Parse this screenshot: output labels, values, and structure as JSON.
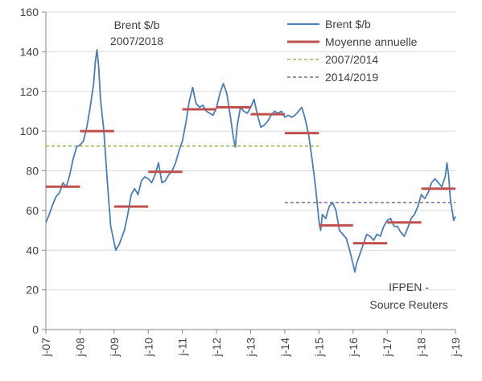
{
  "chart_data": {
    "type": "line",
    "title": "Brent $/b\n2007/2018",
    "title_lines": [
      "Brent $/b",
      "2007/2018"
    ],
    "source_lines": [
      "IFPEN -",
      "Source Reuters"
    ],
    "xlabel": "",
    "ylabel": "",
    "ylim": [
      0,
      160
    ],
    "yticks": [
      0,
      20,
      40,
      60,
      80,
      100,
      120,
      140,
      160
    ],
    "xlim": [
      2007,
      2019
    ],
    "xticks": [
      {
        "x": 2007,
        "label": "j-07"
      },
      {
        "x": 2008,
        "label": "j-08"
      },
      {
        "x": 2009,
        "label": "j-09"
      },
      {
        "x": 2010,
        "label": "j-10"
      },
      {
        "x": 2011,
        "label": "j-11"
      },
      {
        "x": 2012,
        "label": "j-12"
      },
      {
        "x": 2013,
        "label": "j-13"
      },
      {
        "x": 2014,
        "label": "j-14"
      },
      {
        "x": 2015,
        "label": "j-15"
      },
      {
        "x": 2016,
        "label": "j-16"
      },
      {
        "x": 2017,
        "label": "j-17"
      },
      {
        "x": 2018,
        "label": "j-18"
      },
      {
        "x": 2019,
        "label": "j-19"
      }
    ],
    "grid": "horizontal",
    "legend_position": "top-right",
    "series": [
      {
        "name": "Brent $/b",
        "kind": "line",
        "color": "#4a7ebb",
        "points": [
          [
            2007.0,
            54
          ],
          [
            2007.1,
            58
          ],
          [
            2007.2,
            63
          ],
          [
            2007.3,
            67
          ],
          [
            2007.4,
            69
          ],
          [
            2007.5,
            74
          ],
          [
            2007.6,
            72
          ],
          [
            2007.7,
            78
          ],
          [
            2007.8,
            86
          ],
          [
            2007.9,
            92
          ],
          [
            2008.0,
            93
          ],
          [
            2008.1,
            95
          ],
          [
            2008.2,
            102
          ],
          [
            2008.3,
            112
          ],
          [
            2008.4,
            124
          ],
          [
            2008.45,
            135
          ],
          [
            2008.5,
            141
          ],
          [
            2008.55,
            132
          ],
          [
            2008.6,
            116
          ],
          [
            2008.7,
            100
          ],
          [
            2008.8,
            75
          ],
          [
            2008.9,
            52
          ],
          [
            2009.0,
            44
          ],
          [
            2009.05,
            40
          ],
          [
            2009.15,
            43
          ],
          [
            2009.3,
            50
          ],
          [
            2009.4,
            58
          ],
          [
            2009.5,
            68
          ],
          [
            2009.6,
            71
          ],
          [
            2009.7,
            68
          ],
          [
            2009.8,
            75
          ],
          [
            2009.9,
            77
          ],
          [
            2010.0,
            76
          ],
          [
            2010.1,
            74
          ],
          [
            2010.2,
            78
          ],
          [
            2010.3,
            84
          ],
          [
            2010.4,
            74
          ],
          [
            2010.5,
            75
          ],
          [
            2010.6,
            78
          ],
          [
            2010.7,
            80
          ],
          [
            2010.8,
            84
          ],
          [
            2010.9,
            90
          ],
          [
            2011.0,
            95
          ],
          [
            2011.1,
            104
          ],
          [
            2011.2,
            115
          ],
          [
            2011.3,
            122
          ],
          [
            2011.4,
            114
          ],
          [
            2011.5,
            112
          ],
          [
            2011.6,
            113
          ],
          [
            2011.7,
            110
          ],
          [
            2011.8,
            109
          ],
          [
            2011.9,
            108
          ],
          [
            2012.0,
            112
          ],
          [
            2012.1,
            119
          ],
          [
            2012.2,
            124
          ],
          [
            2012.3,
            119
          ],
          [
            2012.4,
            108
          ],
          [
            2012.5,
            96
          ],
          [
            2012.55,
            92
          ],
          [
            2012.6,
            102
          ],
          [
            2012.7,
            112
          ],
          [
            2012.8,
            110
          ],
          [
            2012.9,
            109
          ],
          [
            2013.0,
            112
          ],
          [
            2013.1,
            116
          ],
          [
            2013.2,
            108
          ],
          [
            2013.3,
            102
          ],
          [
            2013.4,
            103
          ],
          [
            2013.5,
            105
          ],
          [
            2013.6,
            108
          ],
          [
            2013.7,
            110
          ],
          [
            2013.8,
            109
          ],
          [
            2013.9,
            110
          ],
          [
            2014.0,
            107
          ],
          [
            2014.1,
            108
          ],
          [
            2014.2,
            107
          ],
          [
            2014.3,
            108
          ],
          [
            2014.4,
            110
          ],
          [
            2014.5,
            112
          ],
          [
            2014.6,
            106
          ],
          [
            2014.7,
            98
          ],
          [
            2014.8,
            86
          ],
          [
            2014.9,
            72
          ],
          [
            2015.0,
            55
          ],
          [
            2015.05,
            50
          ],
          [
            2015.1,
            58
          ],
          [
            2015.2,
            56
          ],
          [
            2015.3,
            62
          ],
          [
            2015.4,
            64
          ],
          [
            2015.5,
            60
          ],
          [
            2015.6,
            50
          ],
          [
            2015.7,
            48
          ],
          [
            2015.8,
            46
          ],
          [
            2015.9,
            40
          ],
          [
            2016.0,
            33
          ],
          [
            2016.05,
            29
          ],
          [
            2016.1,
            33
          ],
          [
            2016.2,
            38
          ],
          [
            2016.3,
            43
          ],
          [
            2016.4,
            48
          ],
          [
            2016.5,
            47
          ],
          [
            2016.6,
            45
          ],
          [
            2016.7,
            48
          ],
          [
            2016.8,
            47
          ],
          [
            2016.9,
            52
          ],
          [
            2017.0,
            55
          ],
          [
            2017.1,
            56
          ],
          [
            2017.2,
            52
          ],
          [
            2017.3,
            52
          ],
          [
            2017.4,
            49
          ],
          [
            2017.5,
            47
          ],
          [
            2017.6,
            51
          ],
          [
            2017.7,
            56
          ],
          [
            2017.8,
            58
          ],
          [
            2017.9,
            62
          ],
          [
            2018.0,
            68
          ],
          [
            2018.1,
            66
          ],
          [
            2018.2,
            69
          ],
          [
            2018.3,
            74
          ],
          [
            2018.4,
            76
          ],
          [
            2018.5,
            74
          ],
          [
            2018.6,
            72
          ],
          [
            2018.7,
            77
          ],
          [
            2018.75,
            84
          ],
          [
            2018.8,
            78
          ],
          [
            2018.85,
            66
          ],
          [
            2018.9,
            60
          ],
          [
            2018.95,
            55
          ],
          [
            2019.0,
            57
          ]
        ]
      },
      {
        "name": "Moyenne annuelle",
        "kind": "steps",
        "color": "#c0504d",
        "segments": [
          {
            "x0": 2007,
            "x1": 2008,
            "y": 72
          },
          {
            "x0": 2008,
            "x1": 2009,
            "y": 100
          },
          {
            "x0": 2009,
            "x1": 2010,
            "y": 62
          },
          {
            "x0": 2010,
            "x1": 2011,
            "y": 79.5
          },
          {
            "x0": 2011,
            "x1": 2012,
            "y": 111
          },
          {
            "x0": 2012,
            "x1": 2013,
            "y": 112
          },
          {
            "x0": 2013,
            "x1": 2014,
            "y": 108.5
          },
          {
            "x0": 2014,
            "x1": 2015,
            "y": 99
          },
          {
            "x0": 2015,
            "x1": 2016,
            "y": 52.5
          },
          {
            "x0": 2016,
            "x1": 2017,
            "y": 43.5
          },
          {
            "x0": 2017,
            "x1": 2018,
            "y": 54
          },
          {
            "x0": 2018,
            "x1": 2019,
            "y": 71
          }
        ]
      },
      {
        "name": "2007/2014",
        "kind": "dashed",
        "color": "#9bbb59",
        "x0": 2007,
        "x1": 2015,
        "y": 92.5
      },
      {
        "name": "2014/2019",
        "kind": "dashed",
        "color": "#8064a2",
        "x0": 2014,
        "x1": 2019,
        "y": 64
      }
    ]
  }
}
